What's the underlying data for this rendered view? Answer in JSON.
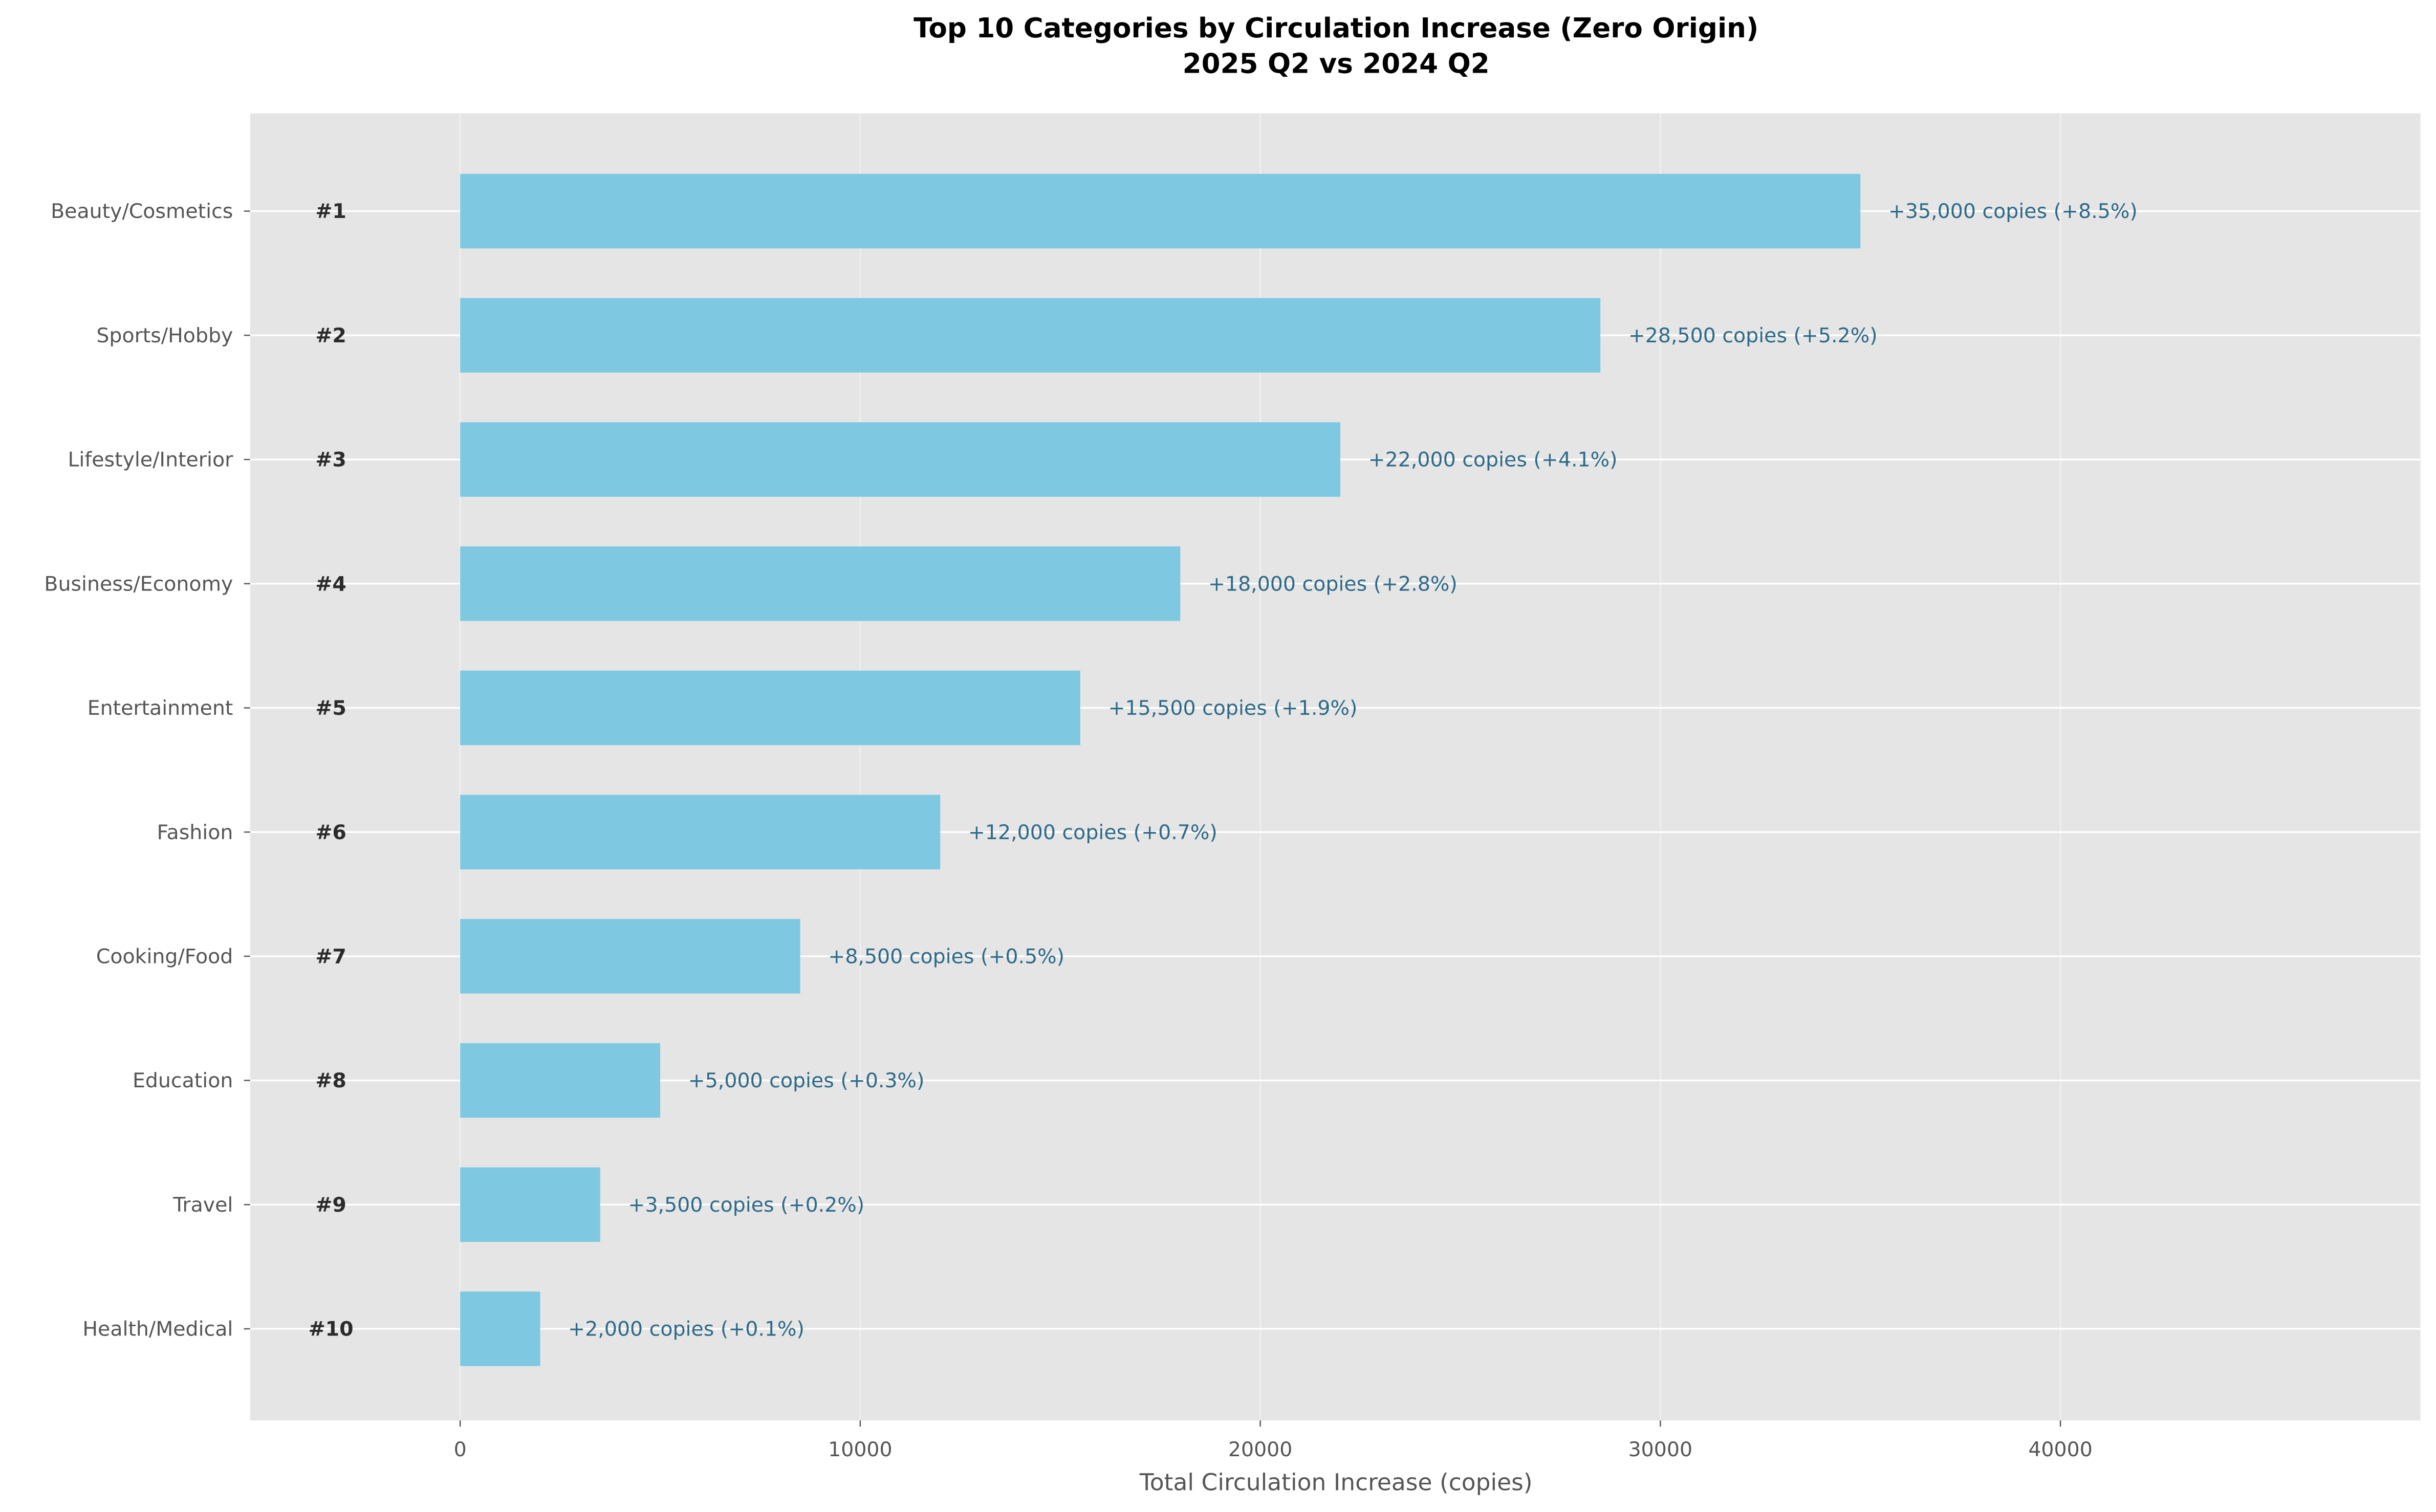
{
  "chart_data": {
    "type": "bar",
    "orientation": "horizontal",
    "title": "Top 10 Categories by Circulation Increase (Zero Origin)",
    "subtitle": "2025 Q2 vs 2024 Q2",
    "xlabel": "Total Circulation Increase (copies)",
    "ylabel": "",
    "xlim": [
      -5250,
      49000
    ],
    "xticks": [
      0,
      10000,
      20000,
      30000,
      40000
    ],
    "xtick_labels": [
      "0",
      "10000",
      "20000",
      "30000",
      "40000"
    ],
    "grid": true,
    "categories": [
      "Beauty/Cosmetics",
      "Sports/Hobby",
      "Lifestyle/Interior",
      "Business/Economy",
      "Entertainment",
      "Fashion",
      "Cooking/Food",
      "Education",
      "Travel",
      "Health/Medical"
    ],
    "ranks": [
      "#1",
      "#2",
      "#3",
      "#4",
      "#5",
      "#6",
      "#7",
      "#8",
      "#9",
      "#10"
    ],
    "values": [
      35000,
      28500,
      22000,
      18000,
      15500,
      12000,
      8500,
      5000,
      3500,
      2000
    ],
    "value_labels": [
      "+35,000 copies (+8.5%)",
      "+28,500 copies (+5.2%)",
      "+22,000 copies (+4.1%)",
      "+18,000 copies (+2.8%)",
      "+15,500 copies (+1.9%)",
      "+12,000 copies (+0.7%)",
      "+8,500 copies (+0.5%)",
      "+5,000 copies (+0.3%)",
      "+3,500 copies (+0.2%)",
      "+2,000 copies (+0.1%)"
    ],
    "colors": {
      "bar": "#7ac6e0",
      "background": "#e5e5e5",
      "label": "#2e6a88"
    }
  }
}
